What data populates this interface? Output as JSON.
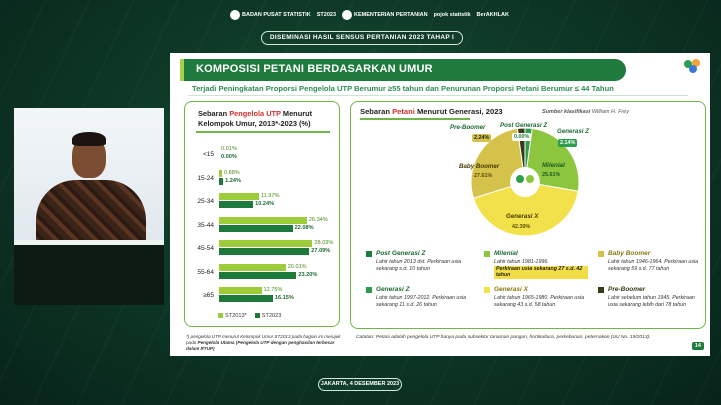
{
  "header": {
    "logos": [
      "BADAN PUSAT STATISTIK",
      "ST2023",
      "KEMENTERIAN PERTANIAN",
      "pojok statistik",
      "BerAKHLAK"
    ],
    "banner": "DISEMINASI HASIL SENSUS PERTANIAN 2023 TAHAP I"
  },
  "slide": {
    "title": "KOMPOSISI PETANI BERDASARKAN UMUR",
    "subtitle": "Terjadi Peningkatan Proporsi Pengelola UTP Berumur ≥55 tahun dan Penurunan Proporsi Petani Berumur ≤ 44 Tahun",
    "page_number": "14",
    "left_card": {
      "heading_pre": "Sebaran ",
      "heading_hl": "Pengelola UTP",
      "heading_post": " Menurut Kelompok Umur, 2013*-2023 (%)",
      "legend_a": "ST2013*",
      "legend_b": "ST2023",
      "footnote_pre": "*) pengelola UTP menurut Kelompok Umur ST2013 pada bagian ini merujuk pada ",
      "footnote_bold": "Pengelola Utama (Pengelola UTP dengan penghasilan terbesar dalam RTUP)"
    },
    "right_card": {
      "heading_pre": "Sebaran ",
      "heading_hl": "Petani",
      "heading_post": " Menurut Generasi, 2023",
      "source_label": "Sumber klasifikasi",
      "source_name": "William H. Frey",
      "catatan": "Catatan: Petani adalah pengelola UTP hanya pada subsektor tanaman pangan, hortikultura, perkebunan, peternakan (UU No. 19/2013)."
    }
  },
  "chart_data": [
    {
      "type": "bar",
      "orientation": "horizontal",
      "categories": [
        "<15",
        "15-24",
        "25-34",
        "35-44",
        "45-54",
        "55-64",
        "≥65"
      ],
      "series": [
        {
          "name": "ST2013*",
          "values": [
            0.01,
            0.88,
            11.97,
            26.34,
            28.03,
            20.01,
            12.75
          ],
          "labels": [
            "0.01%",
            "0.88%",
            "11.97%",
            "26.34%",
            "28.03%",
            "20.01%",
            "12.75%"
          ],
          "color": "#9ccc3a"
        },
        {
          "name": "ST2023",
          "values": [
            0.0,
            1.24,
            10.24,
            22.08,
            27.09,
            23.2,
            16.15
          ],
          "labels": [
            "0.00%",
            "1.24%",
            "10.24%",
            "22.08%",
            "27.09%",
            "23.20%",
            "16.15%"
          ],
          "color": "#1e7a3a"
        }
      ],
      "xlim": [
        0,
        30
      ]
    },
    {
      "type": "pie",
      "title": "Sebaran Petani Menurut Generasi, 2023",
      "slices": [
        {
          "label": "Post Generasi Z",
          "value": 0.0,
          "pct": "0.00%",
          "color": "#1f7a3d"
        },
        {
          "label": "Generasi Z",
          "value": 2.14,
          "pct": "2.14%",
          "color": "#2e9e4e"
        },
        {
          "label": "Milenial",
          "value": 25.61,
          "pct": "25.61%",
          "color": "#8cc63f"
        },
        {
          "label": "Generasi X",
          "value": 42.39,
          "pct": "42.39%",
          "color": "#f2e14a"
        },
        {
          "label": "Baby Boomer",
          "value": 27.61,
          "pct": "27.61%",
          "color": "#d4c24a"
        },
        {
          "label": "Pre-Boomer",
          "value": 2.24,
          "pct": "2.24%",
          "color": "#3a3a1a"
        }
      ]
    }
  ],
  "generations": [
    {
      "name": "Post Generasi Z",
      "color": "#1f7a3d",
      "desc": "Lahir tahun 2013 dst. Perkiraan usia sekarang s.d. 10 tahun",
      "highlight": ""
    },
    {
      "name": "Milenial",
      "color": "#8cc63f",
      "desc": "Lahir tahun 1981-1996.",
      "highlight": "Perkiraan usia sekarang 27 s.d. 42 tahun"
    },
    {
      "name": "Baby Boomer",
      "color": "#d4c24a",
      "desc": "Lahir tahun 1946-1964. Perkiraan usia sekarang 59 s.d. 77 tahun",
      "highlight": ""
    },
    {
      "name": "Generasi Z",
      "color": "#2e9e4e",
      "desc": "Lahir tahun 1997-2012. Perkiraan usia sekarang 11 s.d. 26 tahun",
      "highlight": ""
    },
    {
      "name": "Generasi X",
      "color": "#f2e14a",
      "desc": "Lahir tahun 1965-1980. Perkiraan usia sekarang 43 s.d. 58 tahun",
      "highlight": ""
    },
    {
      "name": "Pre-Boomer",
      "color": "#3a3a1a",
      "desc": "Lahir sebelum tahun 1945. Perkiraan usia sekarang lebih dari 78 tahun",
      "highlight": ""
    }
  ],
  "footer": {
    "date": "JAKARTA, 4 DESEMBER 2023"
  }
}
